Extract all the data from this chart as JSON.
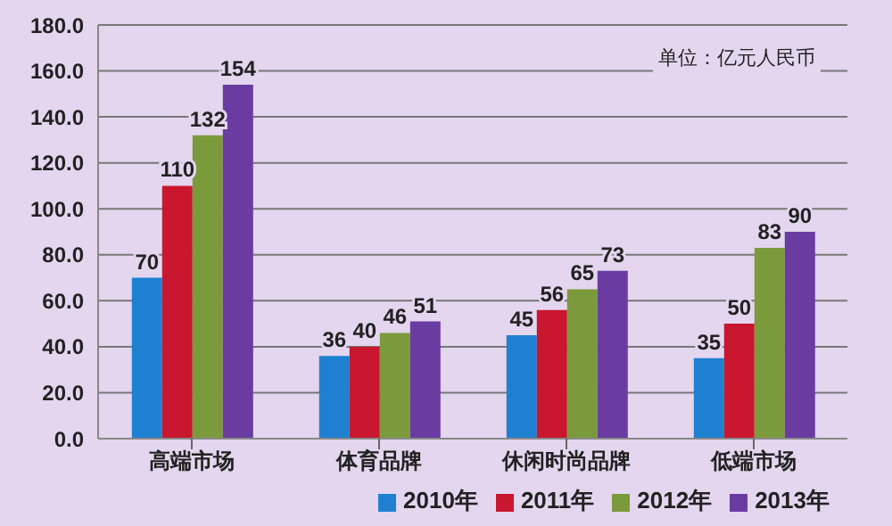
{
  "chart_data": {
    "type": "bar",
    "annotations": [
      "单位：亿元人民币"
    ],
    "categories": [
      "高端市场",
      "体育品牌",
      "休闲时尚品牌",
      "低端市场"
    ],
    "series": [
      {
        "name": "2010年",
        "color": "#1f80d2",
        "values": [
          70,
          36,
          45,
          35
        ]
      },
      {
        "name": "2011年",
        "color": "#c8172e",
        "values": [
          110,
          40,
          56,
          50
        ]
      },
      {
        "name": "2012年",
        "color": "#7b9a3c",
        "values": [
          132,
          46,
          65,
          83
        ]
      },
      {
        "name": "2013年",
        "color": "#6a3ca2",
        "values": [
          154,
          51,
          73,
          90
        ]
      }
    ],
    "ylim": [
      0,
      180
    ],
    "yticks": [
      {
        "value": 0,
        "label": "0.0"
      },
      {
        "value": 20,
        "label": "20.0"
      },
      {
        "value": 40,
        "label": "40.0"
      },
      {
        "value": 60,
        "label": "60.0"
      },
      {
        "value": 80,
        "label": "80.0"
      },
      {
        "value": 100,
        "label": "100.0"
      },
      {
        "value": 120,
        "label": "120.0"
      },
      {
        "value": 140,
        "label": "140.0"
      },
      {
        "value": 160,
        "label": "160.0"
      },
      {
        "value": 180,
        "label": "180.0"
      }
    ],
    "grid": "y",
    "legend": "bottom",
    "data_labels": true
  }
}
